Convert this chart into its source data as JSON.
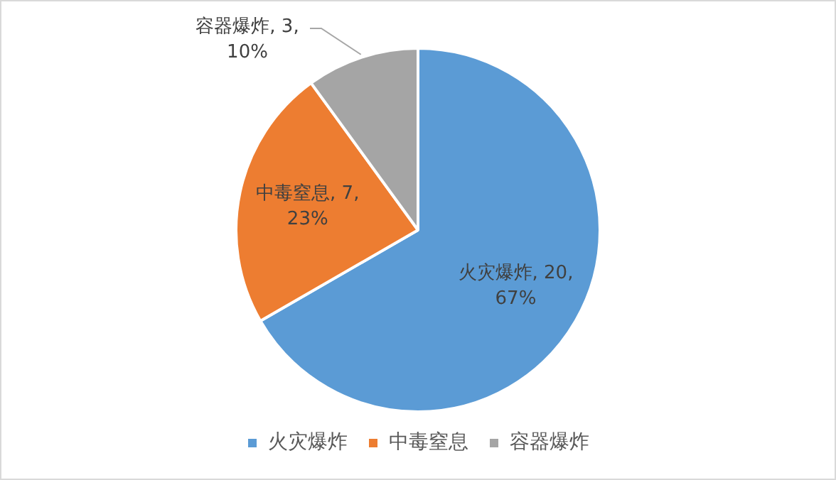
{
  "chart_data": {
    "type": "pie",
    "categories": [
      "火灾爆炸",
      "中毒窒息",
      "容器爆炸"
    ],
    "values": [
      20,
      7,
      3
    ],
    "colors": [
      "#5b9bd5",
      "#ed7d31",
      "#a5a5a5"
    ],
    "value_labels": [
      "火灾爆炸, 20,\n67%",
      "中毒窒息, 7,\n23%",
      "容器爆炸, 3,\n10%"
    ],
    "legend": "bottom"
  }
}
